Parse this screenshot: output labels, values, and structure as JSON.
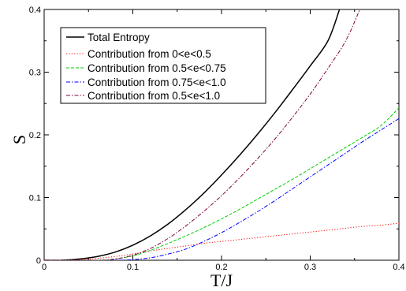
{
  "chart_data": {
    "type": "line",
    "xlabel": "T/J",
    "ylabel": "S",
    "xlim": [
      0,
      0.4
    ],
    "ylim": [
      0,
      0.4
    ],
    "xticks": [
      0,
      0.1,
      0.2,
      0.3,
      0.4
    ],
    "yticks": [
      0,
      0.1,
      0.2,
      0.3,
      0.4
    ],
    "xtick_labels": [
      "0",
      "0.1",
      "0.2",
      "0.3",
      "0.4"
    ],
    "ytick_labels": [
      "0",
      "0.1",
      "0.2",
      "0.3",
      "0.4"
    ],
    "grid": false,
    "legend_position": "top-left",
    "series": [
      {
        "name": "Total Entropy",
        "color": "#000000",
        "dash": "solid",
        "x": [
          0.0,
          0.02,
          0.04,
          0.06,
          0.08,
          0.1,
          0.12,
          0.14,
          0.16,
          0.18,
          0.2,
          0.22,
          0.24,
          0.26,
          0.28,
          0.3,
          0.32,
          0.333
        ],
        "y": [
          0.0,
          0.0,
          0.002,
          0.006,
          0.013,
          0.024,
          0.039,
          0.058,
          0.081,
          0.107,
          0.136,
          0.167,
          0.2,
          0.235,
          0.272,
          0.31,
          0.35,
          0.4
        ]
      },
      {
        "name": "Contribution from 0<e<0.5",
        "color": "#ff0000",
        "dash": "dotted",
        "x": [
          0.0,
          0.04,
          0.06,
          0.08,
          0.1,
          0.12,
          0.14,
          0.16,
          0.18,
          0.2,
          0.22,
          0.24,
          0.26,
          0.28,
          0.3,
          0.32,
          0.34,
          0.36,
          0.38,
          0.4
        ],
        "y": [
          0.0,
          0.001,
          0.003,
          0.006,
          0.01,
          0.015,
          0.019,
          0.023,
          0.027,
          0.03,
          0.033,
          0.036,
          0.039,
          0.042,
          0.045,
          0.048,
          0.051,
          0.054,
          0.056,
          0.059
        ]
      },
      {
        "name": "Contribution from 0.5<e<0.75",
        "color": "#00cc00",
        "dash": "dashed",
        "x": [
          0.0,
          0.06,
          0.08,
          0.1,
          0.12,
          0.14,
          0.16,
          0.18,
          0.2,
          0.22,
          0.24,
          0.26,
          0.28,
          0.3,
          0.32,
          0.34,
          0.36,
          0.38,
          0.4
        ],
        "y": [
          0.0,
          0.0,
          0.002,
          0.007,
          0.016,
          0.027,
          0.039,
          0.052,
          0.066,
          0.081,
          0.097,
          0.113,
          0.129,
          0.146,
          0.163,
          0.18,
          0.197,
          0.215,
          0.243
        ]
      },
      {
        "name": "Contribution from 0.75<e<1.0",
        "color": "#0000ff",
        "dash": "dashdot",
        "x": [
          0.0,
          0.08,
          0.1,
          0.12,
          0.14,
          0.16,
          0.18,
          0.2,
          0.22,
          0.24,
          0.26,
          0.28,
          0.3,
          0.32,
          0.34,
          0.36,
          0.38,
          0.4
        ],
        "y": [
          0.0,
          0.0,
          0.001,
          0.004,
          0.01,
          0.018,
          0.03,
          0.044,
          0.06,
          0.077,
          0.095,
          0.114,
          0.133,
          0.152,
          0.171,
          0.19,
          0.208,
          0.226
        ]
      },
      {
        "name": "Contribution from 0.5<e<1.0",
        "color": "#800040",
        "dash": "dashdot",
        "x": [
          0.0,
          0.06,
          0.08,
          0.1,
          0.12,
          0.14,
          0.16,
          0.18,
          0.2,
          0.22,
          0.24,
          0.26,
          0.28,
          0.3,
          0.32,
          0.34,
          0.356
        ],
        "y": [
          0.0,
          0.0,
          0.002,
          0.008,
          0.019,
          0.035,
          0.055,
          0.078,
          0.103,
          0.131,
          0.161,
          0.193,
          0.228,
          0.265,
          0.306,
          0.35,
          0.4
        ]
      }
    ]
  }
}
